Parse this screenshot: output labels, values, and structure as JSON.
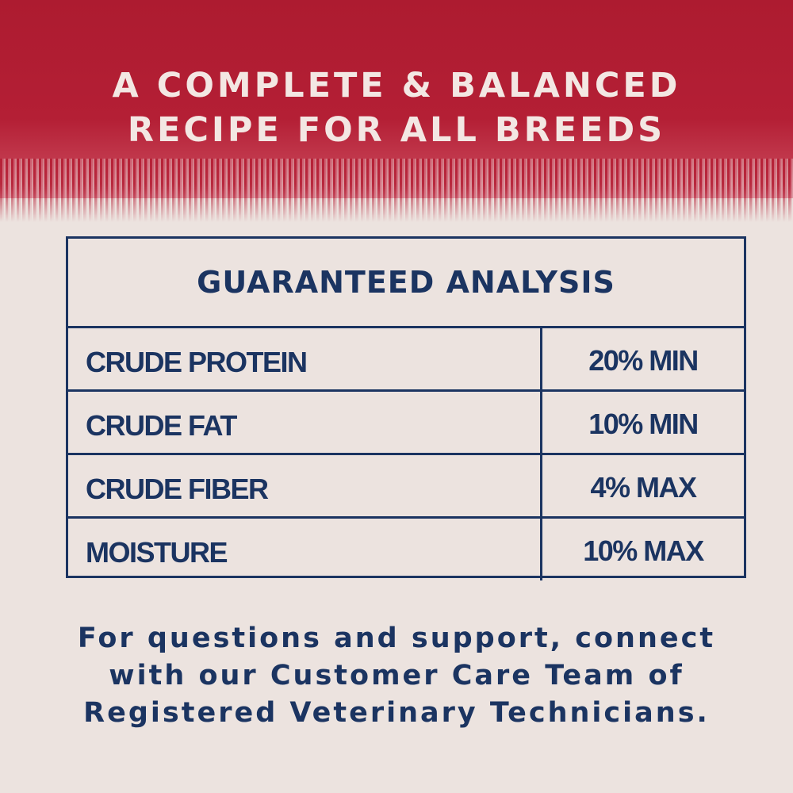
{
  "headline": {
    "line1": "A COMPLETE & BALANCED",
    "line2": "RECIPE FOR ALL BREEDS"
  },
  "analysis": {
    "title": "GUARANTEED ANALYSIS",
    "rows": [
      {
        "name": "CRUDE PROTEIN",
        "value": "20% MIN"
      },
      {
        "name": "CRUDE FAT",
        "value": "10% MIN"
      },
      {
        "name": "CRUDE FIBER",
        "value": "4% MAX"
      },
      {
        "name": "MOISTURE",
        "value": "10% MAX"
      }
    ]
  },
  "footer": {
    "line1": "For questions and support, connect",
    "line2": "with our Customer Care Team of",
    "line3": "Registered Veterinary Technicians."
  },
  "colors": {
    "banner": "#b41f35",
    "navy": "#1b3461",
    "background": "#ece3df"
  }
}
